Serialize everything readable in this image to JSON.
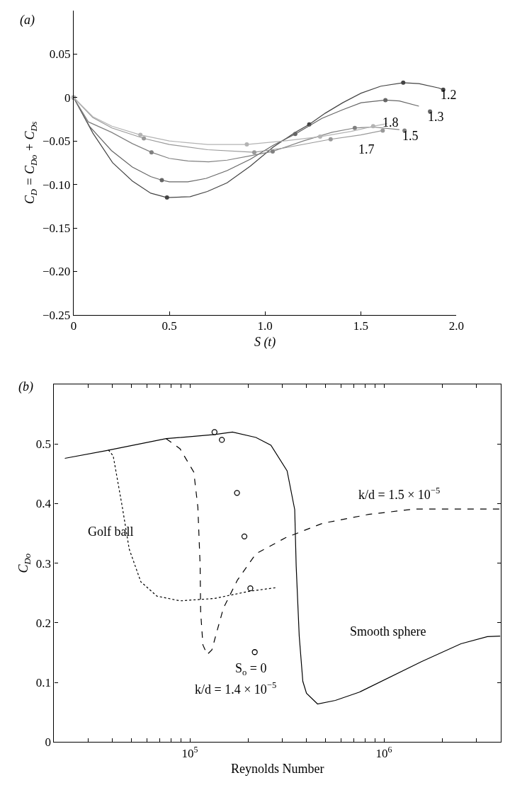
{
  "chart_data": [
    {
      "type": "line",
      "xlabel": "S (t)",
      "ylabel": "C$_{D}$ = C$_{Do}$ + C$_{Ds}$",
      "annotations": [
        "(a)",
        "1.2",
        "1.3",
        "1.8",
        "1.5",
        "1.7"
      ],
      "xlim": [
        0,
        2.0
      ],
      "xticks": [
        0,
        0.5,
        {
          "value": 1,
          "label": "1.0"
        },
        1.5,
        {
          "value": 2,
          "label": "2.0"
        }
      ],
      "ylim": [
        -0.25,
        0.1
      ],
      "yticks": [
        {
          "value": -0.25,
          "label": "−0.25"
        },
        {
          "value": -0.2,
          "label": "−0.20"
        },
        {
          "value": -0.15,
          "label": "−0.15"
        },
        {
          "value": -0.1,
          "label": "−0.10"
        },
        {
          "value": -0.05,
          "label": "−0.05"
        },
        0,
        0.05
      ],
      "series": [
        {
          "color": "#444444",
          "x": [
            0,
            0.101,
            0.204,
            0.307,
            0.403,
            0.488,
            0.609,
            0.699,
            0.802,
            0.923,
            1.043,
            1.158,
            1.231,
            1.315,
            1.406,
            1.502,
            1.605,
            1.722,
            1.804,
            1.907,
            1.931
          ],
          "values": [
            0,
            -0.041,
            -0.075,
            -0.096,
            -0.11,
            -0.115,
            -0.114,
            -0.108,
            -0.098,
            -0.079,
            -0.057,
            -0.04,
            -0.031,
            -0.018,
            -0.006,
            0.005,
            0.013,
            0.017,
            0.016,
            0.011,
            0.009
          ]
        },
        {
          "type": "scatter",
          "marker": "circle",
          "color": "#444444",
          "x": [
            0,
            0.488,
            1.231,
            1.722,
            1.931
          ],
          "values": [
            0,
            -0.115,
            -0.031,
            0.017,
            0.009
          ]
        },
        {
          "color": "#666666",
          "x": [
            0,
            0.083,
            0.198,
            0.307,
            0.403,
            0.461,
            0.5,
            0.597,
            0.693,
            0.802,
            0.923,
            1.043,
            1.158,
            1.297,
            1.406,
            1.502,
            1.629,
            1.702,
            1.804
          ],
          "values": [
            0,
            -0.033,
            -0.061,
            -0.08,
            -0.091,
            -0.095,
            -0.097,
            -0.097,
            -0.093,
            -0.084,
            -0.071,
            -0.055,
            -0.042,
            -0.024,
            -0.014,
            -0.006,
            -0.003,
            -0.004,
            -0.01
          ]
        },
        {
          "type": "scatter",
          "marker": "circle",
          "color": "#666666",
          "x": [
            0,
            0.461,
            1.158,
            1.629,
            1.862
          ],
          "values": [
            0,
            -0.095,
            -0.042,
            -0.003,
            -0.016
          ]
        },
        {
          "color": "#808080",
          "x": [
            0,
            0.077,
            0.198,
            0.307,
            0.407,
            0.5,
            0.597,
            0.705,
            0.802,
            0.923,
            1.04,
            1.08,
            1.2,
            1.35,
            1.469,
            1.565,
            1.702
          ],
          "values": [
            0,
            -0.028,
            -0.04,
            -0.053,
            -0.063,
            -0.07,
            -0.073,
            -0.074,
            -0.072,
            -0.067,
            -0.062,
            -0.059,
            -0.05,
            -0.04,
            -0.035,
            -0.034,
            -0.037
          ]
        },
        {
          "type": "scatter",
          "marker": "circle",
          "color": "#808080",
          "x": [
            0,
            0.407,
            1.04,
            1.469,
            1.729
          ],
          "values": [
            0,
            -0.063,
            -0.062,
            -0.035,
            -0.038
          ]
        },
        {
          "color": "#999999",
          "x": [
            0,
            0.1,
            0.2,
            0.367,
            0.5,
            0.7,
            0.944,
            1.1,
            1.343,
            1.5,
            1.615
          ],
          "values": [
            0,
            -0.023,
            -0.035,
            -0.047,
            -0.054,
            -0.06,
            -0.063,
            -0.058,
            -0.048,
            -0.043,
            -0.038
          ]
        },
        {
          "type": "scatter",
          "marker": "circle",
          "color": "#999999",
          "x": [
            0,
            0.367,
            0.944,
            1.343,
            1.615
          ],
          "values": [
            0,
            -0.047,
            -0.063,
            -0.048,
            -0.038
          ]
        },
        {
          "color": "#b3b3b3",
          "x": [
            0,
            0.1,
            0.2,
            0.349,
            0.5,
            0.7,
            0.905,
            1.1,
            1.288,
            1.45,
            1.565,
            1.638
          ],
          "values": [
            0,
            -0.022,
            -0.033,
            -0.043,
            -0.05,
            -0.054,
            -0.054,
            -0.05,
            -0.045,
            -0.039,
            -0.033,
            -0.03
          ]
        },
        {
          "type": "scatter",
          "marker": "circle",
          "color": "#b3b3b3",
          "x": [
            0,
            0.349,
            0.905,
            1.288,
            1.565
          ],
          "values": [
            0,
            -0.043,
            -0.054,
            -0.045,
            -0.033
          ]
        }
      ]
    },
    {
      "type": "line",
      "xlabel": "Reynolds Number",
      "ylabel": "C$_{Do}$",
      "log": "x",
      "annotations": [
        "(b)",
        "Golf ball",
        "Smooth sphere",
        "k/d = 1.5 × 10$^{−5}$",
        "S$_{o}$ = 0",
        "k/d = 1.4 × 10$^{−5}$"
      ],
      "xlim": [
        20000,
        4000000
      ],
      "xticks": [
        {
          "value": 30000,
          "label": null
        },
        {
          "value": 40000,
          "label": null
        },
        {
          "value": 50000,
          "label": null
        },
        {
          "value": 60000,
          "label": null
        },
        {
          "value": 70000,
          "label": null
        },
        {
          "value": 80000,
          "label": null
        },
        {
          "value": 90000,
          "label": null
        },
        {
          "value": 100000,
          "label": "10$^{5}$"
        },
        {
          "value": 200000,
          "label": null
        },
        {
          "value": 300000,
          "label": null
        },
        {
          "value": 400000,
          "label": null
        },
        {
          "value": 500000,
          "label": null
        },
        {
          "value": 600000,
          "label": null
        },
        {
          "value": 700000,
          "label": null
        },
        {
          "value": 800000,
          "label": null
        },
        {
          "value": 900000,
          "label": null
        },
        {
          "value": 1000000,
          "label": "10$^{6}$"
        },
        {
          "value": 2000000,
          "label": null
        },
        {
          "value": 3000000,
          "label": null
        },
        {
          "value": 4000000,
          "label": null
        }
      ],
      "ylim": [
        0,
        0.6
      ],
      "yticks": [
        0,
        0.1,
        0.2,
        0.3,
        0.4,
        0.5
      ],
      "series": [
        {
          "line_style": "solid",
          "color": "#000000",
          "x": [
            22700,
            37100,
            75500,
            134000,
            165800,
            219000,
            261600,
            317000,
            347000,
            353000,
            366000,
            382000,
            399000,
            455000,
            562000,
            748000,
            1560000,
            2490000,
            3410000,
            3970000
          ],
          "values": [
            0.476,
            0.489,
            0.509,
            0.516,
            0.52,
            0.511,
            0.498,
            0.455,
            0.39,
            0.296,
            0.178,
            0.102,
            0.082,
            0.064,
            0.07,
            0.084,
            0.135,
            0.165,
            0.177,
            0.178
          ]
        },
        {
          "line_style": "dashed",
          "color": "#000000",
          "x": [
            75500,
            89000,
            104800,
            110000,
            113000,
            113700,
            116800,
            122800,
            130000,
            135800,
            149000,
            176000,
            219000,
            312000,
            483000,
            836000,
            1440000,
            3970000
          ],
          "values": [
            0.509,
            0.492,
            0.453,
            0.394,
            0.296,
            0.218,
            0.163,
            0.147,
            0.155,
            0.178,
            0.225,
            0.272,
            0.316,
            0.343,
            0.367,
            0.382,
            0.391,
            0.391
          ]
        },
        {
          "line_style": "dotted",
          "color": "#000000",
          "x": [
            38100,
            40300,
            44900,
            48700,
            55900,
            67600,
            88900,
            134000,
            202000,
            276000
          ],
          "values": [
            0.49,
            0.48,
            0.394,
            0.324,
            0.269,
            0.245,
            0.237,
            0.241,
            0.253,
            0.259
          ]
        },
        {
          "type": "scatter",
          "marker": "circle",
          "color": "#000000",
          "x": [
            134000,
            146200,
            175000,
            191000,
            205000,
            216000
          ],
          "values": [
            0.52,
            0.507,
            0.418,
            0.345,
            0.258,
            0.151
          ]
        }
      ]
    }
  ]
}
